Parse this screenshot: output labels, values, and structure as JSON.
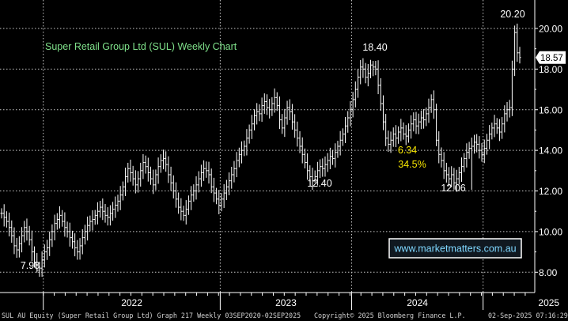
{
  "chart_data": {
    "type": "ohlc",
    "title": "Super Retail Group Ltd (SUL) Weekly Chart",
    "y_ticks": [
      "8.00",
      "10.00",
      "12.00",
      "14.00",
      "16.00",
      "18.00",
      "20.00"
    ],
    "ylim": [
      7.0,
      21.4
    ],
    "x_year_labels": [
      "2022",
      "2023",
      "2024",
      "2025"
    ],
    "last_price_label": "18.57",
    "last_price": 18.57,
    "colors": {
      "background": "#000000",
      "grid": "#c8c8c8",
      "bars": "#ffffff",
      "title": "#7fe08a",
      "annotation_highlight": "#f5e400",
      "annotation_white": "#ffffff",
      "price_tag_bg": "#ffffff"
    },
    "annotations": [
      {
        "text": "7.98",
        "x": 18,
        "y": 7.98,
        "color": "white"
      },
      {
        "text": "12.40",
        "x": 147,
        "y": 12.4,
        "color": "white"
      },
      {
        "text": "18.40",
        "x": 179,
        "y": 18.4,
        "color": "white"
      },
      {
        "text": "6.34",
        "x": 198,
        "y": 13.7,
        "color": "yellow"
      },
      {
        "text": "34.5%",
        "x": 202,
        "y": 13.1,
        "color": "yellow"
      },
      {
        "text": "12.06",
        "x": 221,
        "y": 12.06,
        "color": "white"
      },
      {
        "text": "20.20",
        "x": 245,
        "y": 20.2,
        "color": "white"
      }
    ],
    "watermark": "www.marketmatters.com.au",
    "series": [
      {
        "values": [
          10.9,
          10.7,
          10.5,
          10.2,
          9.8,
          9.3,
          9.1,
          9.4,
          9.8,
          10.2,
          10.0,
          9.6,
          9.0,
          8.5,
          8.1,
          8.2,
          8.6,
          9.0,
          9.2,
          9.6,
          10.0,
          10.4,
          10.6,
          10.8,
          10.5,
          10.2,
          10.0,
          9.7,
          9.5,
          9.2,
          9.0,
          9.3,
          9.7,
          10.0,
          10.3,
          10.5,
          10.6,
          10.8,
          11.0,
          11.2,
          11.0,
          10.8,
          10.7,
          10.9,
          11.1,
          11.3,
          11.5,
          11.8,
          12.2,
          12.7,
          13.1,
          12.9,
          12.6,
          12.3,
          12.6,
          13.0,
          13.4,
          13.2,
          12.9,
          12.6,
          12.3,
          12.8,
          13.2,
          13.5,
          13.6,
          13.3,
          12.8,
          12.4,
          12.0,
          11.6,
          11.2,
          11.0,
          10.8,
          11.1,
          11.5,
          11.8,
          12.0,
          12.3,
          12.6,
          12.9,
          13.1,
          13.0,
          12.8,
          12.2,
          11.9,
          11.6,
          11.3,
          11.6,
          11.9,
          12.2,
          12.5,
          12.8,
          13.1,
          13.5,
          13.8,
          14.0,
          14.2,
          14.6,
          15.0,
          15.3,
          15.7,
          15.9,
          15.8,
          16.2,
          16.4,
          16.1,
          16.0,
          16.3,
          16.6,
          16.2,
          15.5,
          15.1,
          15.6,
          16.1,
          15.9,
          15.4,
          15.0,
          14.6,
          14.2,
          13.8,
          13.4,
          13.0,
          12.7,
          12.5,
          12.7,
          13.0,
          13.2,
          13.1,
          13.3,
          13.5,
          13.7,
          13.6,
          13.9,
          14.2,
          14.5,
          14.8,
          15.2,
          15.6,
          16.0,
          16.5,
          17.0,
          17.6,
          18.1,
          18.0,
          17.6,
          17.8,
          18.2,
          18.1,
          18.0,
          17.2,
          16.3,
          15.4,
          14.6,
          14.3,
          14.5,
          14.8,
          14.6,
          14.9,
          15.1,
          14.8,
          14.7,
          15.0,
          15.3,
          15.5,
          15.2,
          15.4,
          15.6,
          15.5,
          15.8,
          16.1,
          16.5,
          16.0,
          14.5,
          13.8,
          13.5,
          13.0,
          12.8,
          12.6,
          12.8,
          12.4,
          12.6,
          12.9,
          13.2,
          13.6,
          13.9,
          14.1,
          14.2,
          14.4,
          14.3,
          14.0,
          13.8,
          14.1,
          14.5,
          14.8,
          15.1,
          15.3,
          15.1,
          14.9,
          15.3,
          15.8,
          16.0,
          16.1,
          18.0,
          19.8,
          18.8,
          18.57
        ]
      }
    ]
  },
  "footer": {
    "left": "SUL AU Equity (Super Retail Group Ltd) Graph 217  Weekly 03SEP2020-02SEP2025",
    "mid": "Copyright© 2025 Bloomberg Finance L.P.",
    "right": "02-Sep-2025 07:16:29"
  }
}
